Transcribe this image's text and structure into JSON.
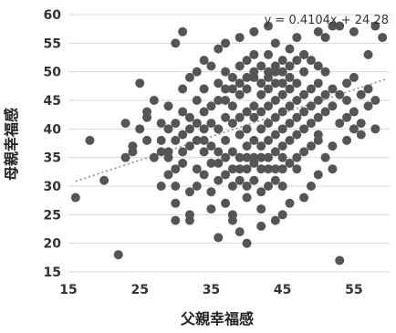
{
  "chart_data": {
    "type": "scatter",
    "xlabel": "父親幸福感",
    "ylabel": "母親幸福感",
    "xlim": [
      15,
      60
    ],
    "ylim": [
      15,
      60
    ],
    "x_ticks": [
      15,
      25,
      35,
      45,
      55
    ],
    "y_ticks": [
      15,
      20,
      25,
      30,
      35,
      40,
      45,
      50,
      55,
      60
    ],
    "x_tick_labels": [
      "15",
      "25",
      "35",
      "45",
      "55"
    ],
    "y_tick_labels": [
      "15",
      "20",
      "25",
      "30",
      "35",
      "40",
      "45",
      "50",
      "55",
      "60"
    ],
    "grid": {
      "horizontal": true,
      "vertical": false
    },
    "annotation": "y = 0.4104x + 24.28",
    "trendline": {
      "slope": 0.4104,
      "intercept": 24.28,
      "style": "dotted"
    },
    "marker_color": "#555555",
    "trendline_color": "#888888",
    "series": [
      {
        "points": [
          [
            16,
            28
          ],
          [
            18,
            38
          ],
          [
            20,
            31
          ],
          [
            22,
            18
          ],
          [
            23,
            35
          ],
          [
            24,
            36
          ],
          [
            25,
            48
          ],
          [
            26,
            43
          ],
          [
            27,
            45
          ],
          [
            28,
            30
          ],
          [
            28,
            41
          ],
          [
            29,
            36
          ],
          [
            29,
            44
          ],
          [
            30,
            27
          ],
          [
            30,
            24
          ],
          [
            30,
            55
          ],
          [
            30,
            30
          ],
          [
            31,
            57
          ],
          [
            31,
            43
          ],
          [
            32,
            40
          ],
          [
            32,
            25
          ],
          [
            32,
            24
          ],
          [
            33,
            33
          ],
          [
            33,
            45
          ],
          [
            34,
            52
          ],
          [
            34,
            47
          ],
          [
            34,
            38
          ],
          [
            35,
            26
          ],
          [
            35,
            29
          ],
          [
            35,
            51
          ],
          [
            36,
            21
          ],
          [
            36,
            54
          ],
          [
            37,
            27
          ],
          [
            37,
            55
          ],
          [
            38,
            25
          ],
          [
            38,
            24
          ],
          [
            39,
            56
          ],
          [
            39,
            22
          ],
          [
            40,
            20
          ],
          [
            40,
            28
          ],
          [
            41,
            53
          ],
          [
            41,
            57
          ],
          [
            42,
            26
          ],
          [
            42,
            23
          ],
          [
            43,
            53
          ],
          [
            43,
            58
          ],
          [
            44,
            55
          ],
          [
            44,
            24
          ],
          [
            45,
            25
          ],
          [
            45,
            30
          ],
          [
            46,
            27
          ],
          [
            46,
            54
          ],
          [
            47,
            33
          ],
          [
            47,
            56
          ],
          [
            48,
            53
          ],
          [
            48,
            28
          ],
          [
            49,
            30
          ],
          [
            50,
            57
          ],
          [
            50,
            32
          ],
          [
            51,
            35
          ],
          [
            51,
            56
          ],
          [
            52,
            33
          ],
          [
            52,
            37
          ],
          [
            52,
            58
          ],
          [
            53,
            17
          ],
          [
            53,
            58
          ],
          [
            54,
            42
          ],
          [
            54,
            45
          ],
          [
            55,
            40
          ],
          [
            55,
            49
          ],
          [
            55,
            57
          ],
          [
            56,
            39
          ],
          [
            56,
            46
          ],
          [
            57,
            44
          ],
          [
            57,
            53
          ],
          [
            58,
            45
          ],
          [
            58,
            58
          ],
          [
            59,
            56
          ],
          [
            36,
            36
          ],
          [
            36,
            40
          ],
          [
            37,
            42
          ],
          [
            37,
            45
          ],
          [
            37,
            38
          ],
          [
            38,
            44
          ],
          [
            38,
            41
          ],
          [
            38,
            36
          ],
          [
            39,
            42
          ],
          [
            39,
            46
          ],
          [
            39,
            39
          ],
          [
            39,
            35
          ],
          [
            40,
            43
          ],
          [
            40,
            47
          ],
          [
            40,
            40
          ],
          [
            40,
            37
          ],
          [
            40,
            33
          ],
          [
            41,
            44
          ],
          [
            41,
            49
          ],
          [
            41,
            42
          ],
          [
            41,
            38
          ],
          [
            41,
            35
          ],
          [
            42,
            46
          ],
          [
            42,
            43
          ],
          [
            42,
            40
          ],
          [
            42,
            37
          ],
          [
            42,
            33
          ],
          [
            43,
            47
          ],
          [
            43,
            44
          ],
          [
            43,
            41
          ],
          [
            43,
            38
          ],
          [
            43,
            35
          ],
          [
            44,
            48
          ],
          [
            44,
            45
          ],
          [
            44,
            42
          ],
          [
            44,
            39
          ],
          [
            44,
            36
          ],
          [
            45,
            46
          ],
          [
            45,
            43
          ],
          [
            45,
            40
          ],
          [
            45,
            37
          ],
          [
            45,
            50
          ],
          [
            46,
            47
          ],
          [
            46,
            44
          ],
          [
            46,
            41
          ],
          [
            46,
            38
          ],
          [
            47,
            48
          ],
          [
            47,
            45
          ],
          [
            47,
            42
          ],
          [
            47,
            39
          ],
          [
            48,
            46
          ],
          [
            48,
            43
          ],
          [
            48,
            40
          ],
          [
            48,
            50
          ],
          [
            49,
            47
          ],
          [
            49,
            44
          ],
          [
            49,
            41
          ],
          [
            50,
            48
          ],
          [
            50,
            45
          ],
          [
            50,
            42
          ],
          [
            50,
            39
          ],
          [
            51,
            46
          ],
          [
            51,
            43
          ],
          [
            51,
            50
          ],
          [
            35,
            41
          ],
          [
            35,
            44
          ],
          [
            35,
            37
          ],
          [
            35,
            34
          ],
          [
            34,
            40
          ],
          [
            34,
            43
          ],
          [
            34,
            36
          ],
          [
            33,
            41
          ],
          [
            33,
            38
          ],
          [
            32,
            37
          ],
          [
            32,
            42
          ],
          [
            31,
            39
          ],
          [
            31,
            36
          ],
          [
            30,
            38
          ],
          [
            30,
            41
          ],
          [
            29,
            35
          ],
          [
            29,
            40
          ],
          [
            28,
            36
          ],
          [
            36,
            31
          ],
          [
            37,
            32
          ],
          [
            38,
            30
          ],
          [
            39,
            31
          ],
          [
            40,
            30
          ],
          [
            41,
            31
          ],
          [
            42,
            29
          ],
          [
            43,
            30
          ],
          [
            44,
            31
          ],
          [
            45,
            33
          ],
          [
            46,
            34
          ],
          [
            47,
            35
          ],
          [
            48,
            36
          ],
          [
            49,
            37
          ],
          [
            50,
            38
          ],
          [
            36,
            48
          ],
          [
            37,
            50
          ],
          [
            38,
            49
          ],
          [
            39,
            51
          ],
          [
            40,
            52
          ],
          [
            41,
            50
          ],
          [
            42,
            51
          ],
          [
            43,
            50
          ],
          [
            44,
            51
          ],
          [
            45,
            52
          ],
          [
            46,
            51
          ],
          [
            47,
            52
          ],
          [
            48,
            53
          ],
          [
            49,
            52
          ],
          [
            50,
            51
          ],
          [
            36,
            45
          ],
          [
            37,
            47
          ],
          [
            38,
            47
          ],
          [
            39,
            48
          ],
          [
            40,
            49
          ],
          [
            42,
            48
          ],
          [
            43,
            49
          ],
          [
            44,
            50
          ],
          [
            45,
            48
          ],
          [
            46,
            49
          ],
          [
            36,
            34
          ],
          [
            37,
            35
          ],
          [
            38,
            33
          ],
          [
            39,
            33
          ],
          [
            40,
            35
          ],
          [
            41,
            34
          ],
          [
            42,
            35
          ],
          [
            43,
            33
          ],
          [
            44,
            33
          ],
          [
            45,
            35
          ],
          [
            33,
            50
          ],
          [
            32,
            49
          ],
          [
            31,
            47
          ],
          [
            34,
            32
          ],
          [
            33,
            30
          ],
          [
            32,
            29
          ],
          [
            31,
            34
          ],
          [
            30,
            33
          ],
          [
            29,
            32
          ],
          [
            28,
            38
          ],
          [
            52,
            44
          ],
          [
            52,
            47
          ],
          [
            53,
            41
          ],
          [
            53,
            46
          ],
          [
            54,
            38
          ],
          [
            54,
            48
          ],
          [
            55,
            43
          ],
          [
            56,
            41
          ],
          [
            57,
            47
          ],
          [
            58,
            40
          ],
          [
            27,
            35
          ],
          [
            26,
            38
          ],
          [
            26,
            42
          ],
          [
            25,
            40
          ],
          [
            24,
            37
          ],
          [
            23,
            41
          ]
        ]
      }
    ]
  }
}
